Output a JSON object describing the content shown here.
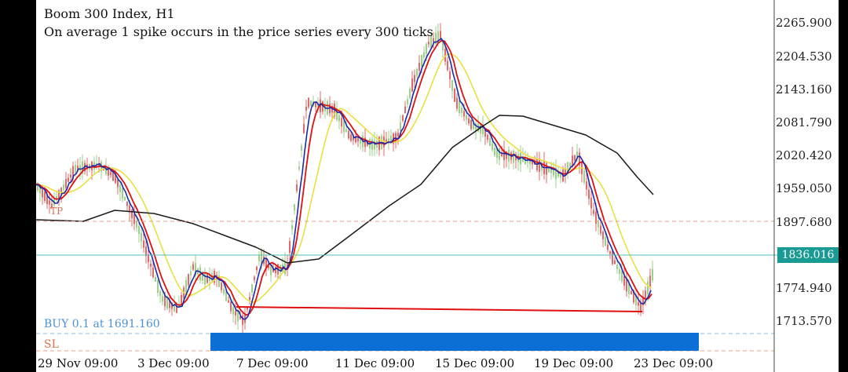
{
  "header": {
    "title": "Boom 300 Index, H1",
    "subtitle": "On average 1 spike occurs in the price series every 300 ticks"
  },
  "price_axis": {
    "labels": [
      "2265.900",
      "2204.530",
      "2143.160",
      "2081.790",
      "2020.420",
      "1959.050",
      "1897.680",
      "1774.940",
      "1713.570"
    ],
    "current_price": "1836.016"
  },
  "time_axis": {
    "labels": [
      "29 Nov 09:00",
      "3 Dec 09:00",
      "7 Dec 09:00",
      "11 Dec 09:00",
      "15 Dec 09:00",
      "19 Dec 09:00",
      "23 Dec 09:00"
    ]
  },
  "orders": {
    "buy_label": "BUY 0.1 at 1691.160",
    "sl_label": "SL",
    "tp_label": "TP"
  },
  "colors": {
    "background": "#ffffff",
    "bull_candle": "#9ccf8a",
    "bear_candle": "#e06a6a",
    "ma_fast": "#1c2aa8",
    "ma_mid": "#e01010",
    "ma_slow": "#e8e040",
    "ma_long": "#1a1a1a",
    "current_price": "#1a9a94",
    "zone": "#0b6fd6"
  }
}
